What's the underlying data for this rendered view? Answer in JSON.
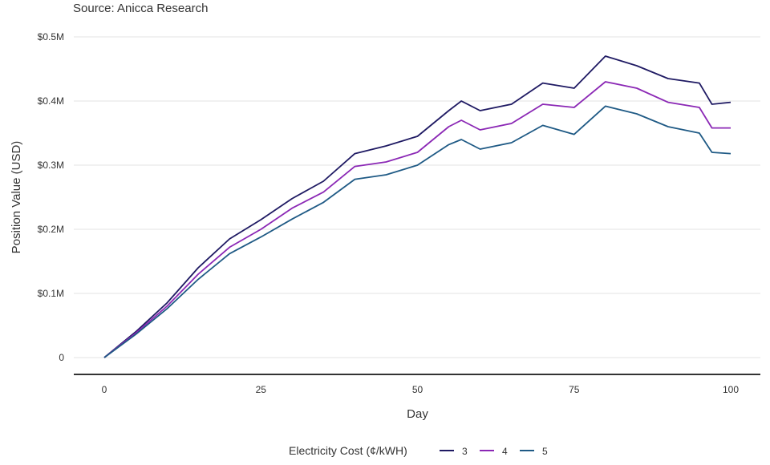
{
  "source": "Source: Anicca Research",
  "chart_data": {
    "type": "line",
    "xlabel": "Day",
    "ylabel": "Position Value (USD)",
    "xlim": [
      0,
      100
    ],
    "ylim": [
      0,
      500000
    ],
    "x_ticks": [
      0,
      25,
      50,
      75,
      100
    ],
    "x_tick_labels": [
      "0",
      "25",
      "50",
      "75",
      "100"
    ],
    "y_ticks": [
      0,
      100000,
      200000,
      300000,
      400000,
      500000
    ],
    "y_tick_labels": [
      "0",
      "$0.1M",
      "$0.2M",
      "$0.3M",
      "$0.4M",
      "$0.5M"
    ],
    "grid": "horizontal",
    "legend_title": "Electricity Cost (¢/kWH)",
    "legend_position": "bottom",
    "x": [
      0,
      5,
      10,
      15,
      20,
      25,
      30,
      35,
      40,
      45,
      50,
      55,
      57,
      60,
      65,
      70,
      75,
      80,
      85,
      90,
      95,
      97,
      100
    ],
    "series": [
      {
        "name": "3",
        "color": "#1f1a63",
        "values": [
          0,
          40000,
          85000,
          140000,
          185000,
          215000,
          248000,
          275000,
          318000,
          330000,
          345000,
          385000,
          400000,
          385000,
          395000,
          428000,
          420000,
          470000,
          455000,
          435000,
          428000,
          395000,
          398000
        ]
      },
      {
        "name": "4",
        "color": "#8b28b5",
        "values": [
          0,
          38000,
          80000,
          130000,
          172000,
          200000,
          233000,
          258000,
          298000,
          305000,
          320000,
          360000,
          370000,
          355000,
          365000,
          395000,
          390000,
          430000,
          420000,
          398000,
          390000,
          358000,
          358000
        ]
      },
      {
        "name": "5",
        "color": "#1f5a85",
        "values": [
          0,
          36000,
          76000,
          122000,
          162000,
          188000,
          216000,
          242000,
          278000,
          285000,
          300000,
          332000,
          340000,
          325000,
          335000,
          362000,
          348000,
          392000,
          380000,
          360000,
          350000,
          320000,
          318000
        ]
      }
    ]
  }
}
